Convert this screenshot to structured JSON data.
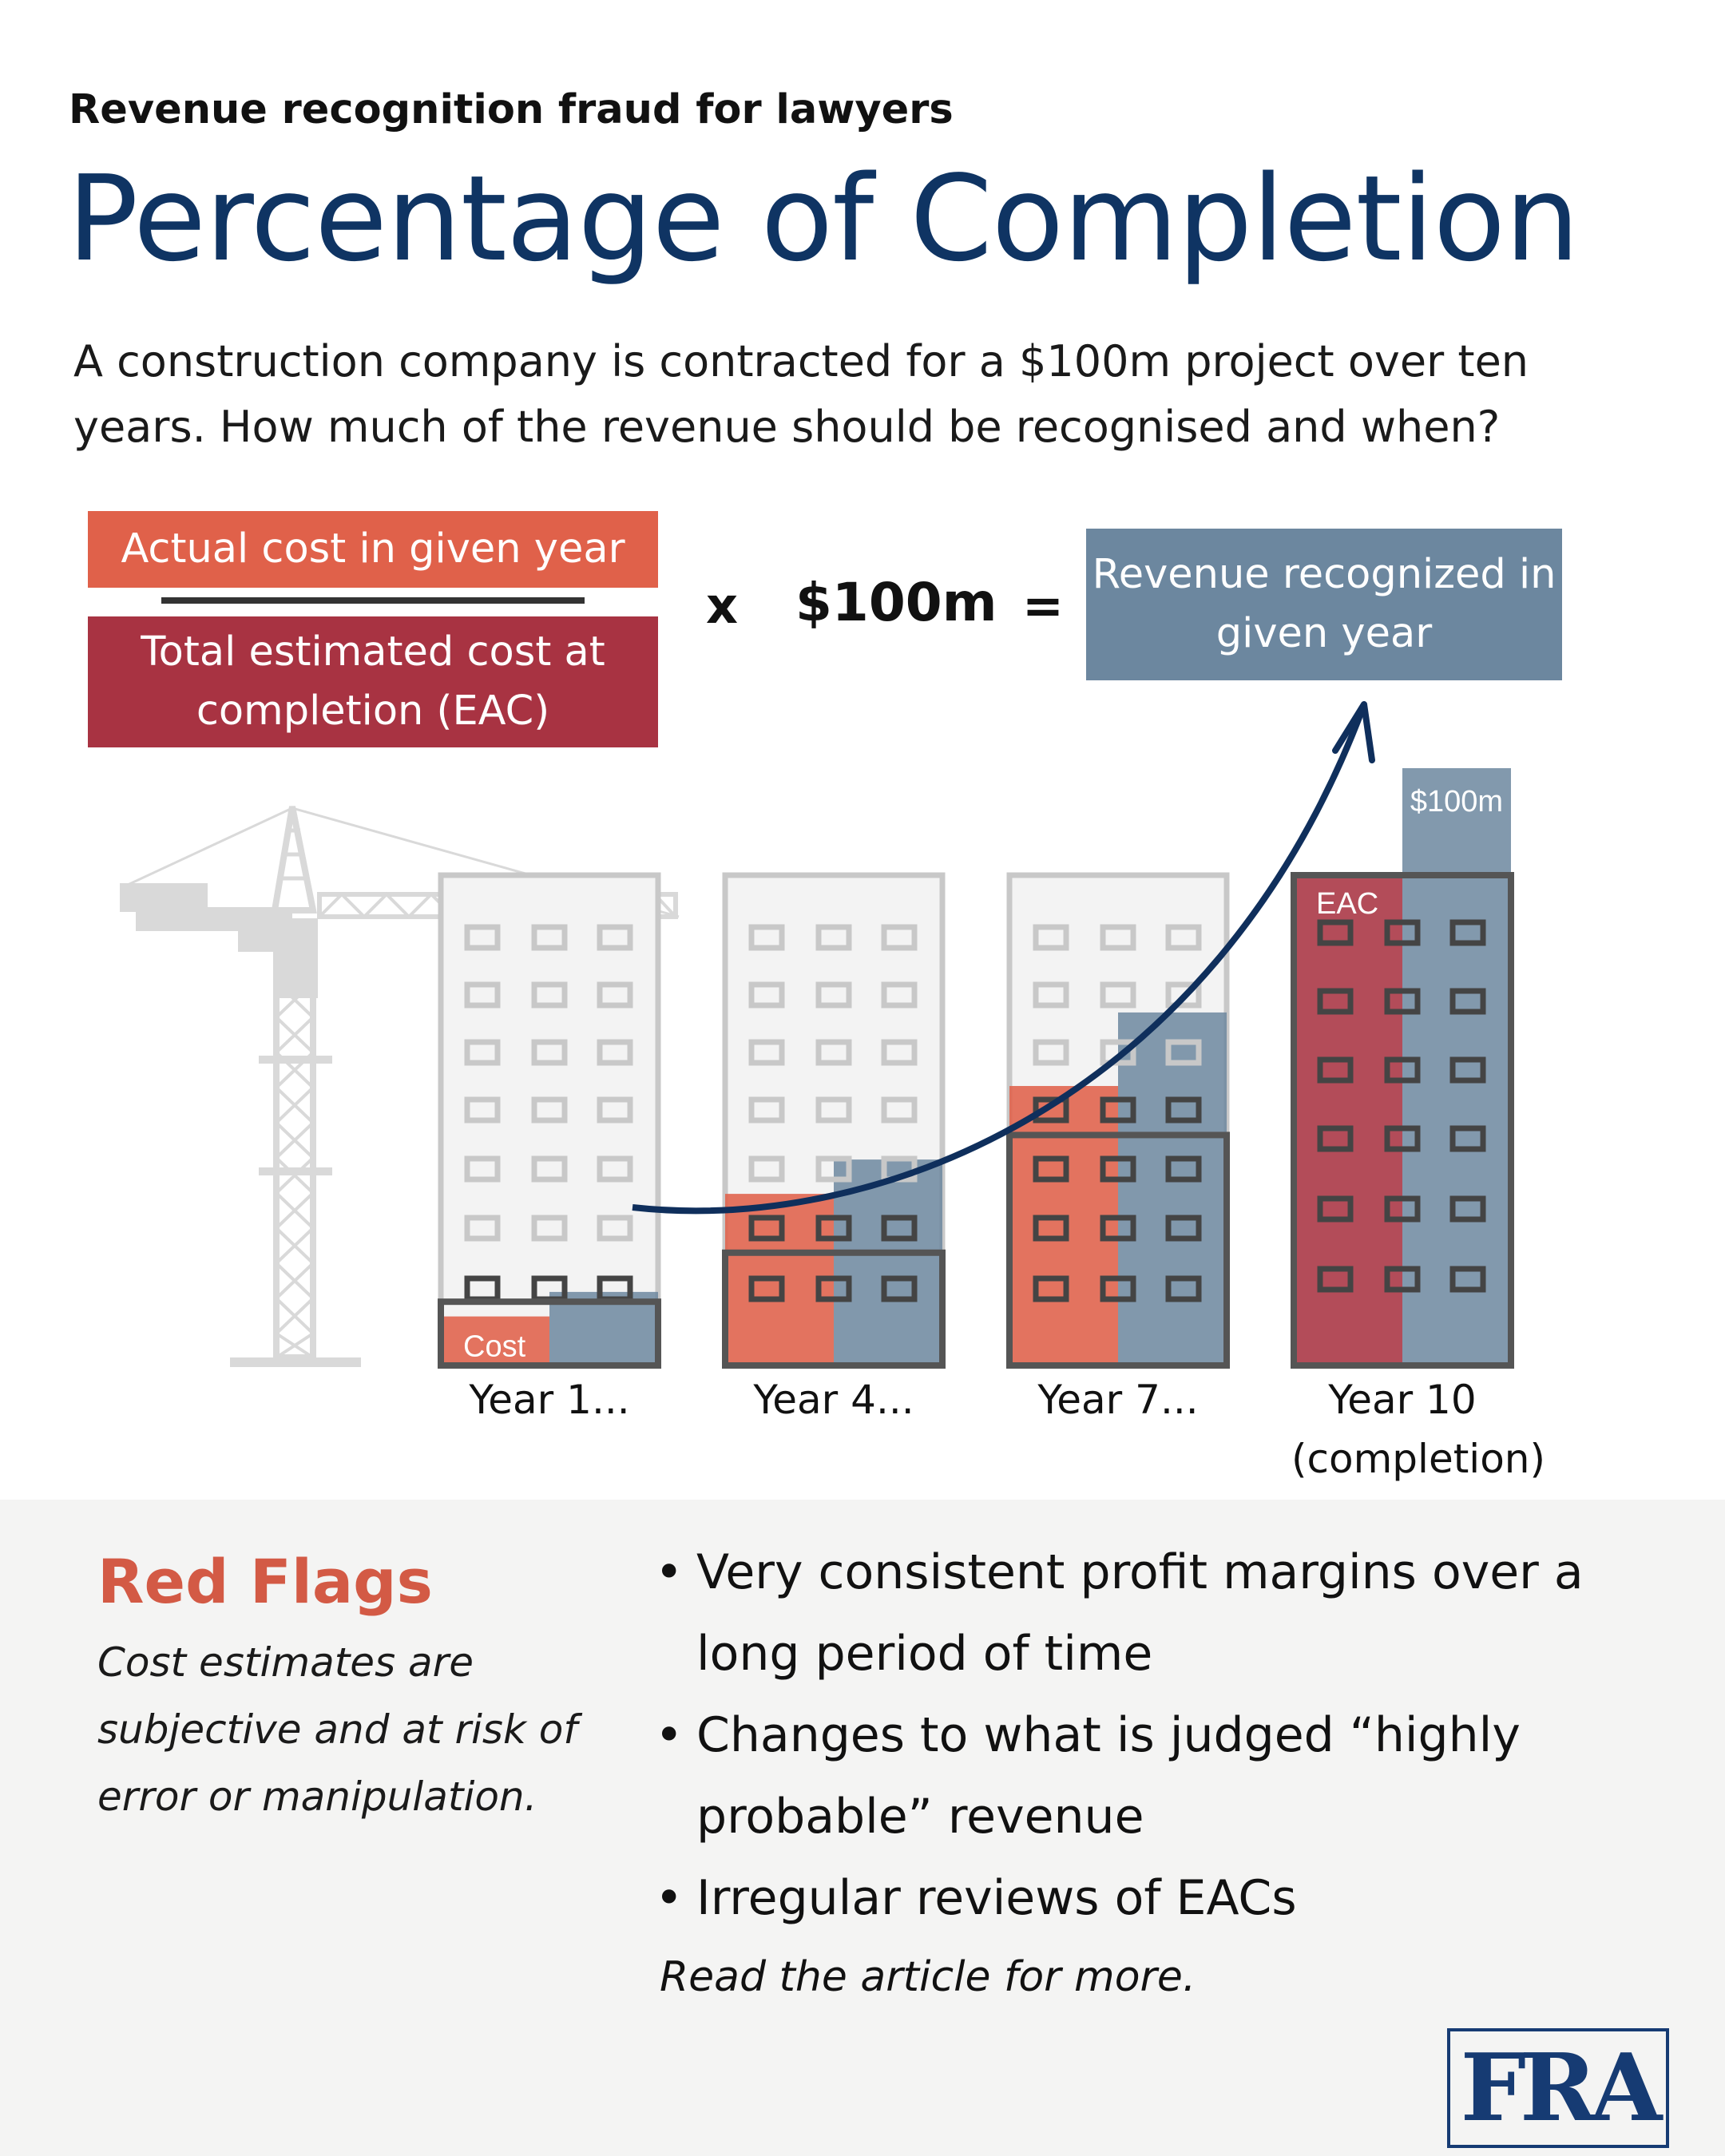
{
  "kicker": "Revenue recognition fraud for lawyers",
  "title": "Percentage of Completion",
  "intro": "A construction company is contracted for a $100m project over ten years. How much of the revenue should be recognised and when?",
  "formula": {
    "numerator": "Actual cost in given year",
    "denominator": "Total estimated cost at completion (EAC)",
    "times": "x",
    "amount": "$100m",
    "equals": "=",
    "result": "Revenue recognized in given year"
  },
  "buildings": [
    {
      "label": "Year 1...",
      "label_line2": "",
      "cost_fraction": 0.1,
      "revenue_fraction": 0.15,
      "cost_label": "Cost"
    },
    {
      "label": "Year 4...",
      "label_line2": "",
      "cost_fraction": 0.35,
      "revenue_fraction": 0.42
    },
    {
      "label": "Year 7...",
      "label_line2": "",
      "cost_fraction": 0.57,
      "revenue_fraction": 0.72
    },
    {
      "label": "Year 10",
      "label_line2": "(completion)",
      "cost_fraction": 1.0,
      "revenue_fraction": 1.0,
      "cost_label": "EAC",
      "revenue_label": "$100m"
    }
  ],
  "red_flags": {
    "title": "Red Flags",
    "subtitle": "Cost estimates are subjective and at risk of error or manipulation.",
    "items": [
      "Very consistent profit margins over a long period of time",
      "Changes to what is judged “highly probable” revenue",
      "Irregular reviews of EACs"
    ],
    "more": "Read the article for more."
  },
  "colors": {
    "navy": "#0f3463",
    "cost": "#e0614a",
    "eac": "#a83342",
    "revenue": "#6c879f",
    "outline": "#555555",
    "ghost": "#c8c8c8"
  },
  "logo": "FRA"
}
